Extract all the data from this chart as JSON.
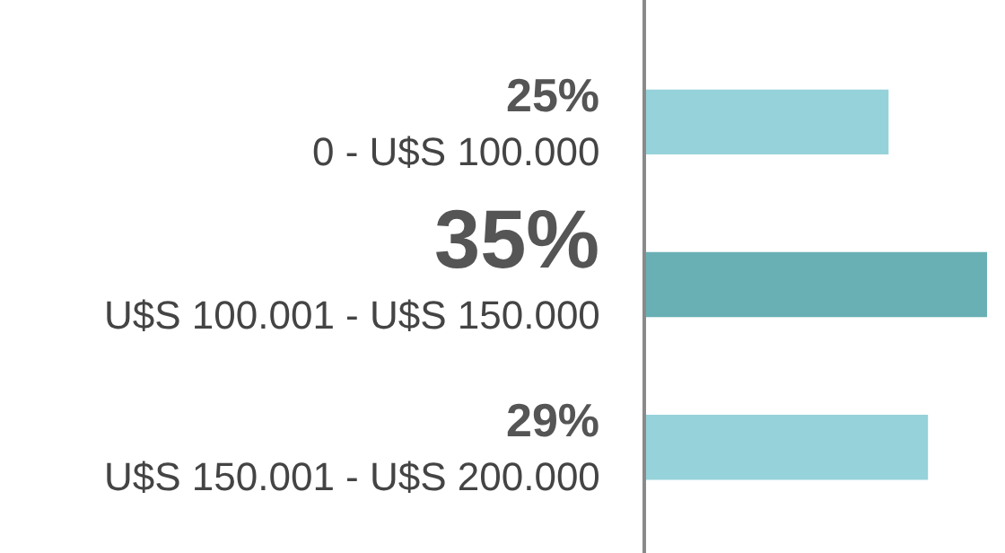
{
  "chart_data": {
    "type": "bar",
    "orientation": "horizontal",
    "categories": [
      "0 - U$S 100.000",
      "U$S 100.001 - U$S 150.000",
      "U$S 150.001 - U$S 200.000"
    ],
    "values": [
      25,
      35,
      29
    ],
    "colors": [
      "#96d2da",
      "#69b0b5",
      "#96d2da"
    ],
    "value_labels": [
      "25%",
      "35%",
      "29%"
    ]
  }
}
